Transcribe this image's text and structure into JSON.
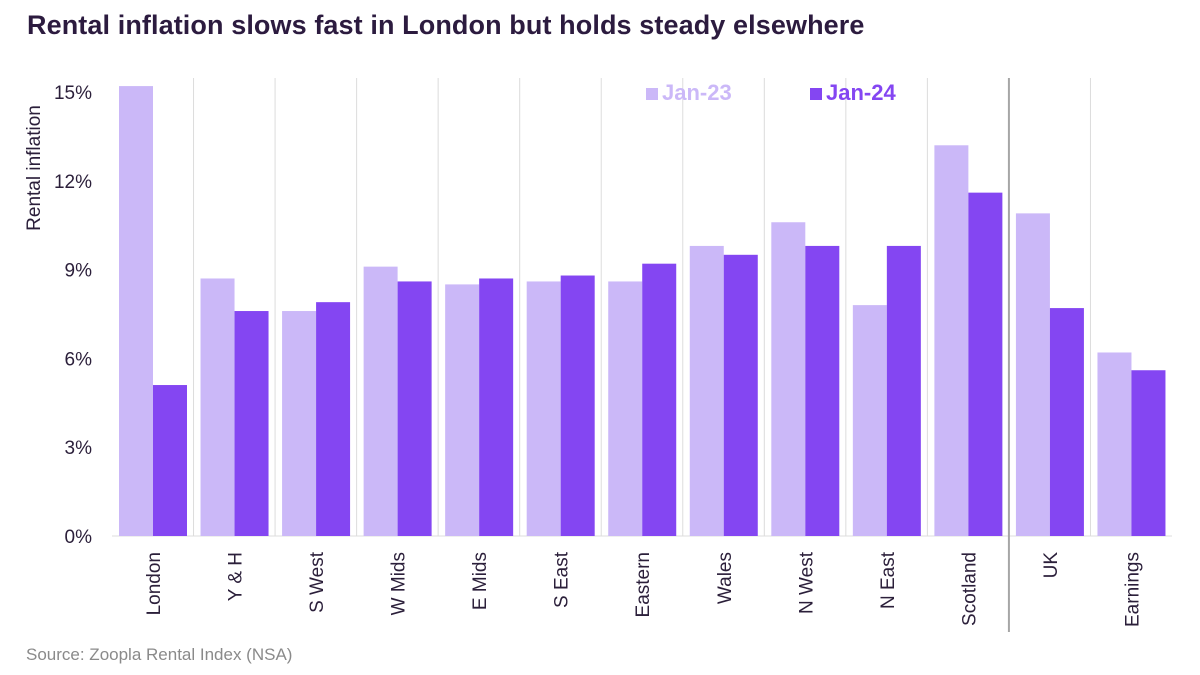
{
  "title": "Rental inflation slows fast in London but holds steady elsewhere",
  "source": "Source: Zoopla Rental Index (NSA)",
  "colors": {
    "jan23": "#cbb8f8",
    "jan24": "#8446f2",
    "grid": "#dcdcdc",
    "divider": "#a6a6a6"
  },
  "chart_data": {
    "type": "bar",
    "title": "Rental inflation slows fast in London but holds steady elsewhere",
    "ylabel": "Rental inflation",
    "xlabel": "",
    "ylim": [
      0,
      15
    ],
    "yticks": [
      "0%",
      "3%",
      "6%",
      "9%",
      "12%",
      "15%"
    ],
    "ytick_values": [
      0,
      3,
      6,
      9,
      12,
      15
    ],
    "legend_position": "top-right",
    "categories": [
      "London",
      "Y & H",
      "S West",
      "W Mids",
      "E Mids",
      "S East",
      "Eastern",
      "Wales",
      "N West",
      "N East",
      "Scotland",
      "UK",
      "Earnings"
    ],
    "series": [
      {
        "name": "Jan-23",
        "values": [
          15.2,
          8.7,
          7.6,
          9.1,
          8.5,
          8.6,
          8.6,
          9.8,
          10.6,
          7.8,
          13.2,
          10.9,
          6.2
        ]
      },
      {
        "name": "Jan-24",
        "values": [
          5.1,
          7.6,
          7.9,
          8.6,
          8.7,
          8.8,
          9.2,
          9.5,
          9.8,
          9.8,
          11.6,
          7.7,
          5.6
        ]
      }
    ],
    "divider_after_category": "Scotland"
  }
}
